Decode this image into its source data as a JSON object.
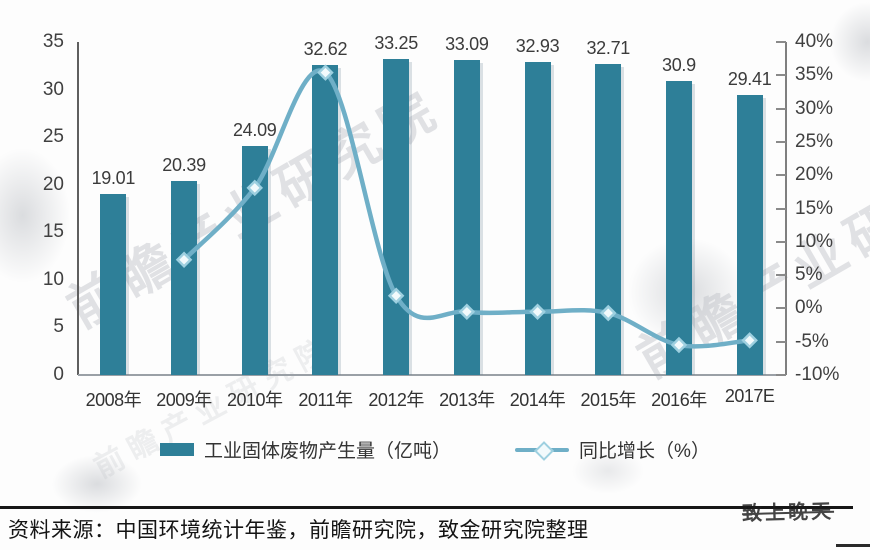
{
  "chart_data": {
    "type": "bar",
    "subtype": "bar-line-combo",
    "categories": [
      "2008年",
      "2009年",
      "2010年",
      "2011年",
      "2012年",
      "2013年",
      "2014年",
      "2015年",
      "2016年",
      "2017E"
    ],
    "series": [
      {
        "name": "工业固体废物产生量（亿吨）",
        "type": "bar",
        "axis": "left",
        "values": [
          19.01,
          20.39,
          24.09,
          32.62,
          33.25,
          33.09,
          32.93,
          32.71,
          30.9,
          29.41
        ],
        "labels": [
          "19.01",
          "20.39",
          "24.09",
          "32.62",
          "33.25",
          "33.09",
          "32.93",
          "32.71",
          "30.9",
          "29.41"
        ]
      },
      {
        "name": "同比增长（%）",
        "type": "line",
        "axis": "right",
        "values": [
          null,
          7.3,
          18.1,
          35.4,
          1.9,
          -0.5,
          -0.5,
          -0.7,
          -5.5,
          -4.8
        ]
      }
    ],
    "title": "",
    "xlabel": "",
    "ylabel_left": "",
    "ylabel_right": "",
    "left_axis": {
      "min": 0,
      "max": 35,
      "step": 5,
      "tick_labels": [
        "0",
        "5",
        "10",
        "15",
        "20",
        "25",
        "30",
        "35"
      ]
    },
    "right_axis": {
      "min": -10,
      "max": 40,
      "step": 5,
      "tick_labels": [
        "-10%",
        "-5%",
        "0%",
        "5%",
        "10%",
        "15%",
        "20%",
        "25%",
        "30%",
        "35%",
        "40%"
      ]
    },
    "grid": "off",
    "legend_position": "bottom"
  },
  "legend": {
    "bar_label": "工业固体废物产生量（亿吨）",
    "line_label": "同比增长（%）"
  },
  "footer": {
    "source_text": "资料来源：中国环境统计年鉴，前瞻研究院，致金研究院整理"
  },
  "watermark": {
    "text": "前瞻产业研究院",
    "stamp": "致上晚天"
  },
  "colors": {
    "bar": "#2e7f98",
    "line": "#6fafc7",
    "marker_fill": "#f2fafc",
    "marker_stroke": "#9ed0e0",
    "axis_text": "#404040",
    "source_text": "#141414"
  }
}
